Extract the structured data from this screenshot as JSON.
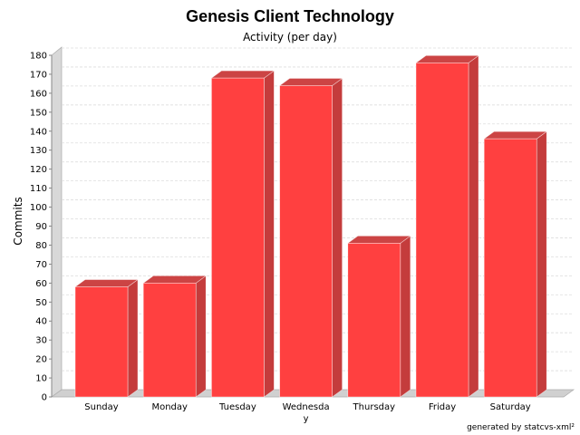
{
  "chart_data": {
    "type": "bar",
    "title": "Genesis Client Technology",
    "subtitle": "Activity (per day)",
    "ylabel": "Commits",
    "xlabel": "",
    "categories": [
      "Sunday",
      "Monday",
      "Tuesday",
      "Wednesday",
      "Thursday",
      "Friday",
      "Saturday"
    ],
    "category_label_lines": [
      [
        "Sunday"
      ],
      [
        "Monday"
      ],
      [
        "Tuesday"
      ],
      [
        "Wednesda",
        "y"
      ],
      [
        "Thursday"
      ],
      [
        "Friday"
      ],
      [
        "Saturday"
      ]
    ],
    "values": [
      58,
      60,
      168,
      164,
      81,
      176,
      136
    ],
    "ylim": [
      0,
      180
    ],
    "ytick_step": 10,
    "grid": true,
    "bar_color": "#ff4040",
    "bar_side_color": "#c43c3c",
    "bar_top_color": "#cc4444",
    "footer": "generated by statcvs-xml²"
  }
}
